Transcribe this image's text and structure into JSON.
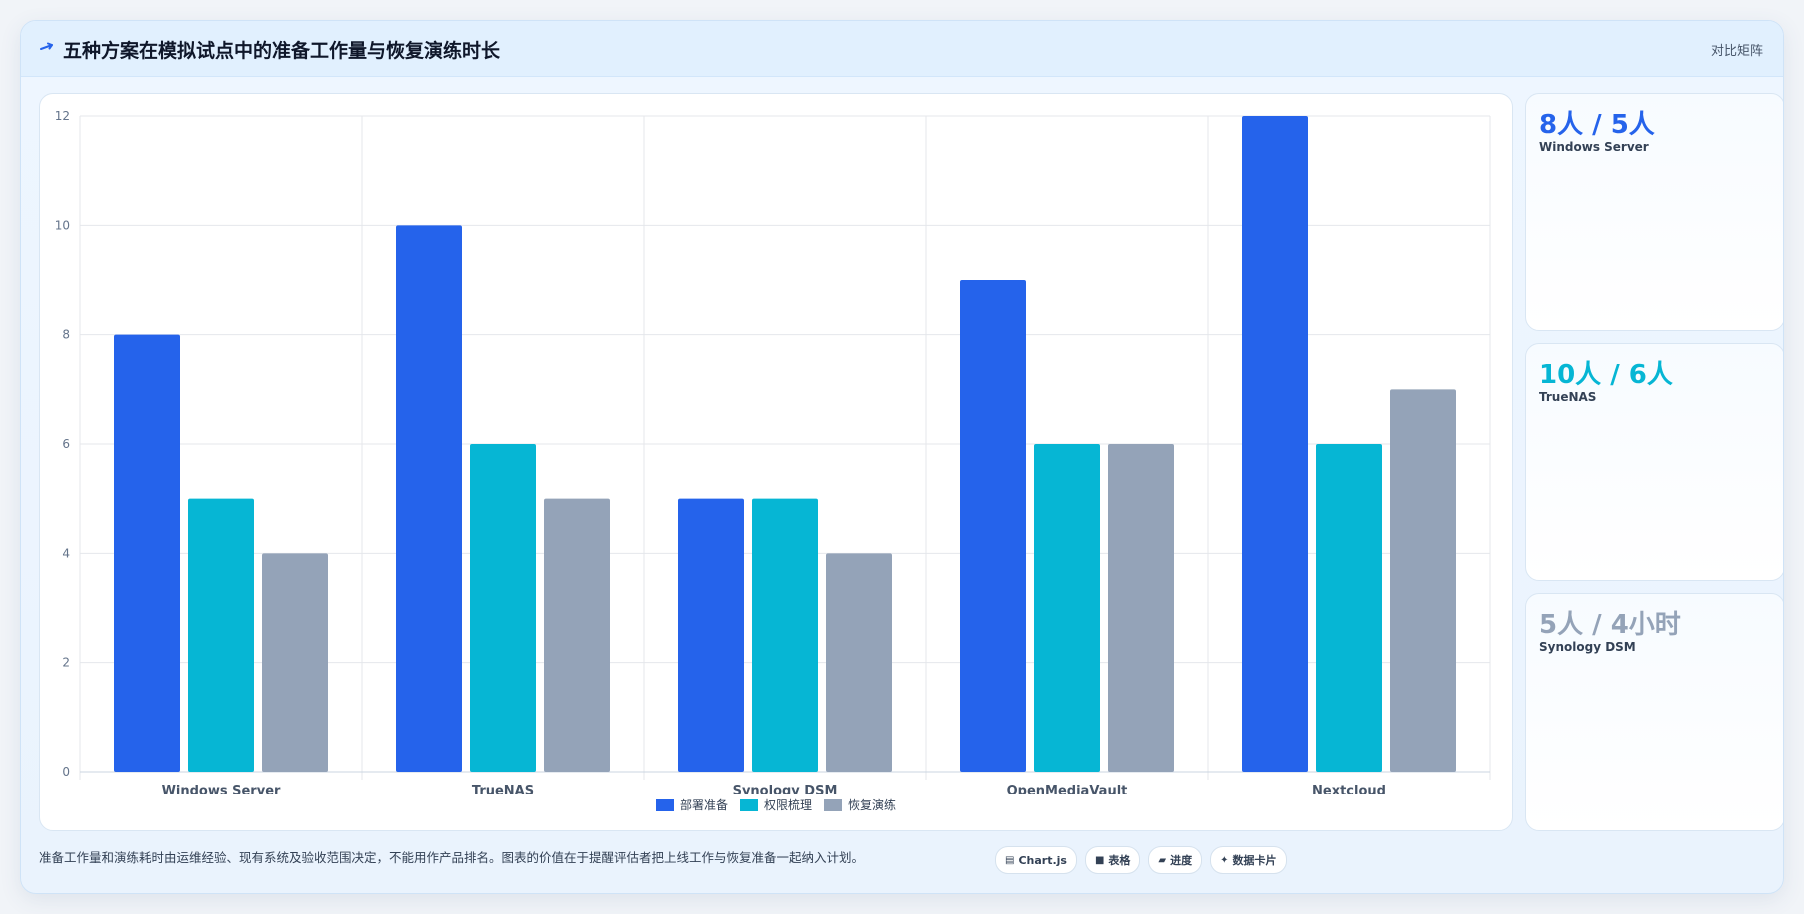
{
  "header": {
    "title": "五种方案在模拟试点中的准备工作量与恢复演练时长",
    "link_label": "对比矩阵"
  },
  "chart_data": {
    "type": "bar",
    "title": "",
    "xlabel": "",
    "ylabel": "",
    "categories": [
      "Windows Server",
      "TrueNAS",
      "Synology DSM",
      "OpenMediaVault",
      "Nextcloud"
    ],
    "series": [
      {
        "name": "部署准备",
        "color": "#2563eb",
        "values": [
          8,
          10,
          5,
          9,
          12
        ]
      },
      {
        "name": "权限梳理",
        "color": "#06b6d4",
        "values": [
          5,
          6,
          5,
          6,
          6
        ]
      },
      {
        "name": "恢复演练",
        "color": "#94a3b8",
        "values": [
          4,
          5,
          4,
          6,
          7
        ]
      }
    ],
    "ylim": [
      0,
      12
    ],
    "yticks": [
      0,
      2,
      4,
      6,
      8,
      10,
      12
    ],
    "grid": true,
    "legend_position": "bottom"
  },
  "side_cards": [
    {
      "value": "8人 / 5人",
      "label": "Windows Server",
      "color": "#2563eb"
    },
    {
      "value": "10人 / 6人",
      "label": "TrueNAS",
      "color": "#06b6d4"
    },
    {
      "value": "5人 / 4小时",
      "label": "Synology DSM",
      "color": "#94a3b8"
    }
  ],
  "footnote": "准备工作量和演练耗时由运维经验、现有系统及验收范围决定，不能用作产品排名。图表的价值在于提醒评估者把上线工作与恢复准备一起纳入计划。",
  "chips": [
    {
      "icon": "▤",
      "icon_name": "chart-icon",
      "label": "Chart.js"
    },
    {
      "icon": "■",
      "icon_name": "table-icon",
      "label": "表格"
    },
    {
      "icon": "▰",
      "icon_name": "progress-icon",
      "label": "进度"
    },
    {
      "icon": "✦",
      "icon_name": "sparkle-icon",
      "label": "数据卡片"
    }
  ]
}
